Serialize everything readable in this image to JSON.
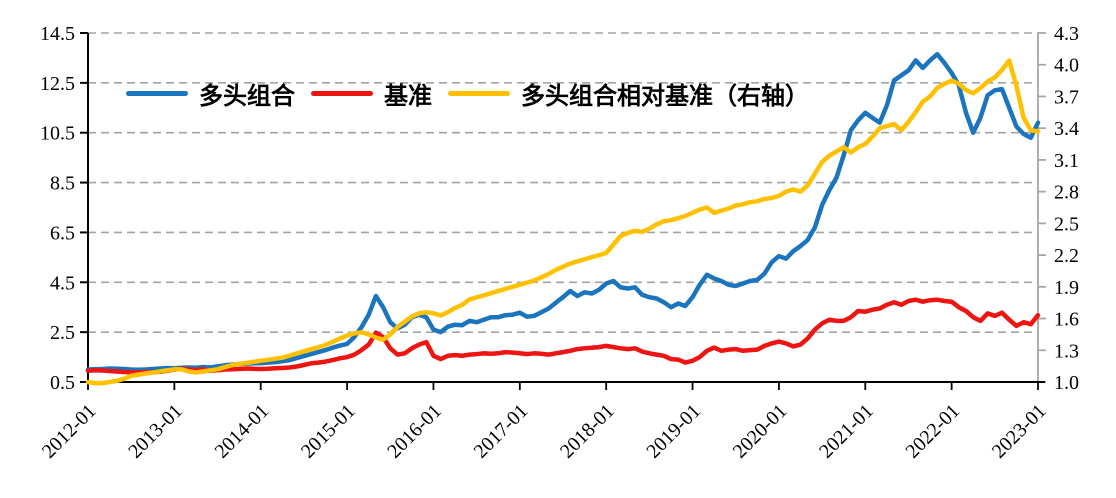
{
  "chart_data": {
    "type": "line",
    "title": "",
    "x_frequency": "monthly",
    "x_range": [
      "2012-01",
      "2023-01"
    ],
    "x_tick_labels": [
      "2012-01",
      "2013-01",
      "2014-01",
      "2015-01",
      "2016-01",
      "2017-01",
      "2018-01",
      "2019-01",
      "2020-01",
      "2021-01",
      "2022-01",
      "2023-01"
    ],
    "left_axis": {
      "min": 0.5,
      "max": 14.5,
      "tick_step": 2.0,
      "ticks": [
        "14.5",
        "12.5",
        "10.5",
        "8.5",
        "6.5",
        "4.5",
        "2.5",
        "0.5"
      ]
    },
    "right_axis": {
      "min": 1.0,
      "max": 4.3,
      "tick_step": 0.3,
      "ticks": [
        "4.3",
        "4.0",
        "3.7",
        "3.4",
        "3.1",
        "2.8",
        "2.5",
        "2.2",
        "1.9",
        "1.6",
        "1.3",
        "1.0"
      ]
    },
    "grid": {
      "horizontal": "dashed at left-axis ticks",
      "vertical": "off",
      "color": "#a3a3a3"
    },
    "legend_position": "top-inside",
    "series": [
      {
        "name": "多头组合",
        "axis": "left",
        "color": "#1B75BE",
        "values": [
          1.0,
          1.01,
          1.02,
          1.04,
          1.03,
          1.02,
          1.0,
          0.99,
          1.0,
          1.02,
          1.04,
          1.06,
          1.05,
          1.07,
          1.08,
          1.07,
          1.1,
          1.08,
          1.13,
          1.17,
          1.2,
          1.22,
          1.24,
          1.25,
          1.26,
          1.28,
          1.3,
          1.34,
          1.38,
          1.46,
          1.54,
          1.62,
          1.7,
          1.78,
          1.88,
          1.96,
          2.03,
          2.3,
          2.7,
          3.2,
          3.95,
          3.5,
          2.9,
          2.65,
          2.8,
          3.1,
          3.2,
          3.1,
          2.6,
          2.5,
          2.72,
          2.8,
          2.78,
          2.95,
          2.9,
          3.0,
          3.1,
          3.1,
          3.18,
          3.2,
          3.28,
          3.12,
          3.15,
          3.3,
          3.45,
          3.68,
          3.9,
          4.15,
          3.95,
          4.1,
          4.05,
          4.2,
          4.45,
          4.55,
          4.3,
          4.25,
          4.3,
          4.0,
          3.9,
          3.85,
          3.7,
          3.5,
          3.65,
          3.55,
          3.9,
          4.4,
          4.8,
          4.65,
          4.55,
          4.4,
          4.35,
          4.45,
          4.55,
          4.6,
          4.85,
          5.3,
          5.55,
          5.45,
          5.75,
          5.95,
          6.2,
          6.7,
          7.6,
          8.2,
          8.7,
          9.6,
          10.6,
          11.0,
          11.3,
          11.1,
          10.9,
          11.6,
          12.6,
          12.8,
          13.0,
          13.4,
          13.1,
          13.4,
          13.65,
          13.3,
          12.9,
          12.4,
          11.3,
          10.5,
          11.1,
          12.0,
          12.2,
          12.25,
          11.5,
          10.75,
          10.45,
          10.3,
          10.9
        ]
      },
      {
        "name": "基准",
        "axis": "left",
        "color": "#EE1411",
        "values": [
          0.95,
          0.97,
          0.96,
          0.94,
          0.92,
          0.9,
          0.89,
          0.88,
          0.9,
          0.89,
          0.91,
          0.95,
          1.0,
          1.03,
          1.0,
          0.98,
          1.01,
          0.95,
          0.97,
          1.0,
          1.01,
          1.02,
          1.04,
          1.03,
          1.02,
          1.03,
          1.05,
          1.06,
          1.08,
          1.12,
          1.18,
          1.25,
          1.28,
          1.32,
          1.38,
          1.45,
          1.5,
          1.6,
          1.78,
          2.0,
          2.48,
          2.3,
          1.85,
          1.6,
          1.65,
          1.85,
          2.0,
          2.1,
          1.55,
          1.42,
          1.55,
          1.58,
          1.55,
          1.6,
          1.62,
          1.65,
          1.63,
          1.65,
          1.7,
          1.68,
          1.65,
          1.62,
          1.65,
          1.63,
          1.6,
          1.65,
          1.7,
          1.75,
          1.82,
          1.85,
          1.87,
          1.9,
          1.95,
          1.9,
          1.85,
          1.82,
          1.85,
          1.72,
          1.65,
          1.6,
          1.55,
          1.42,
          1.4,
          1.28,
          1.35,
          1.5,
          1.75,
          1.88,
          1.75,
          1.8,
          1.82,
          1.75,
          1.78,
          1.8,
          1.95,
          2.05,
          2.12,
          2.05,
          1.93,
          2.0,
          2.25,
          2.6,
          2.85,
          3.0,
          2.95,
          2.95,
          3.1,
          3.35,
          3.32,
          3.4,
          3.45,
          3.6,
          3.7,
          3.6,
          3.75,
          3.8,
          3.72,
          3.78,
          3.8,
          3.75,
          3.72,
          3.5,
          3.35,
          3.1,
          2.95,
          3.25,
          3.15,
          3.28,
          3.0,
          2.75,
          2.9,
          2.82,
          3.18
        ]
      },
      {
        "name": "多头组合相对基准（右轴）",
        "axis": "right",
        "color": "#FFC000",
        "values": [
          1.0,
          0.99,
          0.99,
          1.0,
          1.01,
          1.03,
          1.06,
          1.07,
          1.08,
          1.09,
          1.1,
          1.11,
          1.12,
          1.12,
          1.1,
          1.09,
          1.1,
          1.11,
          1.12,
          1.14,
          1.16,
          1.17,
          1.18,
          1.19,
          1.2,
          1.21,
          1.22,
          1.23,
          1.25,
          1.27,
          1.29,
          1.31,
          1.33,
          1.35,
          1.38,
          1.41,
          1.44,
          1.46,
          1.47,
          1.45,
          1.42,
          1.4,
          1.45,
          1.52,
          1.57,
          1.62,
          1.65,
          1.66,
          1.65,
          1.63,
          1.66,
          1.7,
          1.73,
          1.78,
          1.8,
          1.82,
          1.84,
          1.86,
          1.88,
          1.9,
          1.92,
          1.94,
          1.96,
          1.99,
          2.02,
          2.06,
          2.09,
          2.12,
          2.14,
          2.16,
          2.18,
          2.2,
          2.22,
          2.3,
          2.38,
          2.41,
          2.43,
          2.42,
          2.45,
          2.49,
          2.52,
          2.53,
          2.55,
          2.57,
          2.6,
          2.63,
          2.65,
          2.6,
          2.62,
          2.64,
          2.67,
          2.68,
          2.7,
          2.71,
          2.73,
          2.74,
          2.76,
          2.8,
          2.82,
          2.8,
          2.86,
          2.97,
          3.08,
          3.14,
          3.18,
          3.22,
          3.17,
          3.22,
          3.25,
          3.32,
          3.4,
          3.42,
          3.44,
          3.38,
          3.46,
          3.55,
          3.65,
          3.7,
          3.78,
          3.82,
          3.85,
          3.82,
          3.76,
          3.73,
          3.78,
          3.84,
          3.88,
          3.95,
          4.04,
          3.8,
          3.5,
          3.38,
          3.37
        ]
      }
    ]
  },
  "colors": {
    "series_blue": "#1B75BE",
    "series_red": "#EE1411",
    "series_yellow": "#FFC000",
    "gridline": "#a3a3a3",
    "axis_left_bottom": "#000000",
    "axis_right": "#a6a6a6",
    "text": "#000000",
    "background": "#ffffff"
  }
}
